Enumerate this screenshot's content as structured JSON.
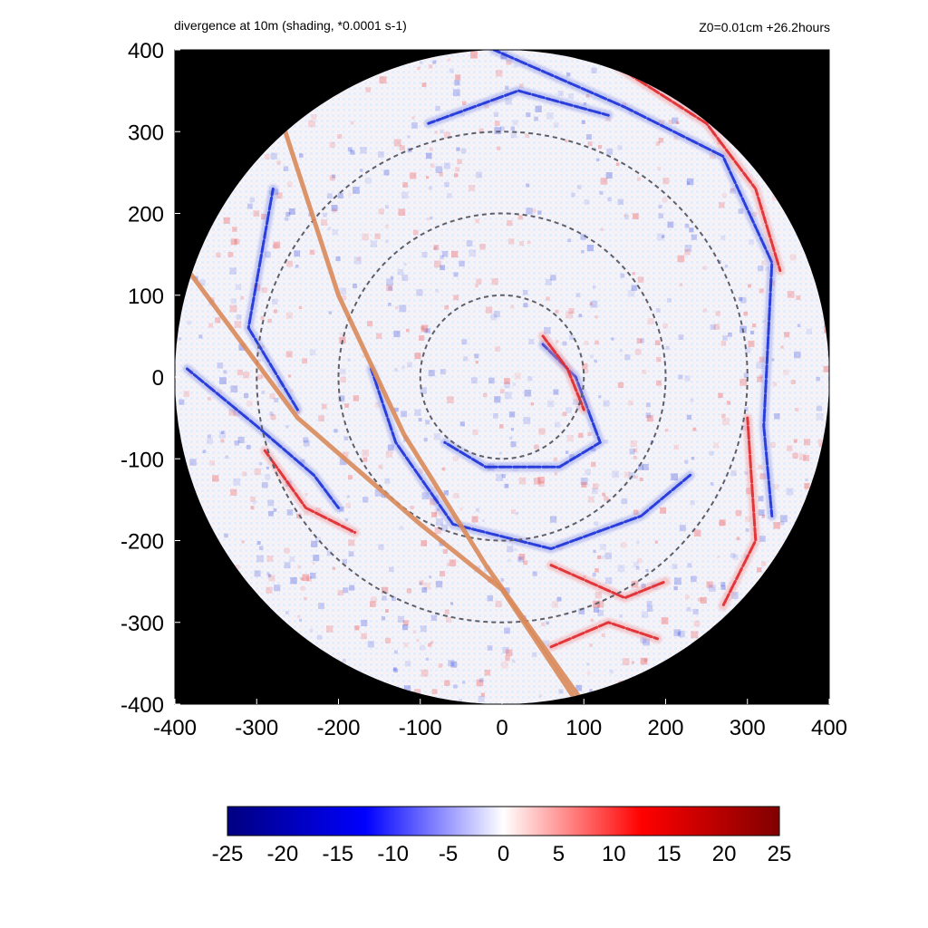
{
  "chart_data": {
    "type": "heatmap",
    "title": "divergence at 10m (shading, *0.0001 s-1)",
    "subtitle": "Z0=0.01cm  +26.2hours",
    "xlim": [
      -400,
      400
    ],
    "ylim": [
      -400,
      400
    ],
    "x_ticks": [
      -400,
      -300,
      -200,
      -100,
      0,
      100,
      200,
      300,
      400
    ],
    "y_ticks": [
      400,
      300,
      200,
      100,
      0,
      -100,
      -200,
      -300,
      -400
    ],
    "domain_radius": 400,
    "background_outside_domain": "#000000",
    "reference_circles_radius": [
      100,
      200,
      300
    ],
    "reference_circle_style": "dashed gray",
    "tracks": [
      {
        "color": "#d9895a",
        "points": [
          [
            -380,
            125
          ],
          [
            -250,
            -50
          ],
          [
            -100,
            -180
          ],
          [
            0,
            -260
          ],
          [
            90,
            -395
          ]
        ]
      },
      {
        "color": "#d9895a",
        "points": [
          [
            -265,
            300
          ],
          [
            -200,
            100
          ],
          [
            -120,
            -70
          ],
          [
            -20,
            -230
          ],
          [
            95,
            -392
          ]
        ]
      }
    ],
    "features": [
      {
        "kind": "convergence-band",
        "color": "blue",
        "points": [
          [
            -10,
            400
          ],
          [
            150,
            330
          ],
          [
            270,
            270
          ],
          [
            330,
            140
          ],
          [
            320,
            -60
          ],
          [
            330,
            -170
          ]
        ]
      },
      {
        "kind": "convergence-band",
        "color": "blue",
        "points": [
          [
            -385,
            10
          ],
          [
            -300,
            -60
          ],
          [
            -230,
            -120
          ],
          [
            -200,
            -160
          ]
        ]
      },
      {
        "kind": "convergence-band",
        "color": "blue",
        "points": [
          [
            -160,
            10
          ],
          [
            -130,
            -80
          ],
          [
            -60,
            -180
          ],
          [
            60,
            -210
          ],
          [
            170,
            -170
          ],
          [
            230,
            -120
          ]
        ]
      },
      {
        "kind": "convergence-band",
        "color": "blue",
        "points": [
          [
            50,
            40
          ],
          [
            90,
            0
          ],
          [
            120,
            -80
          ],
          [
            70,
            -110
          ],
          [
            -20,
            -110
          ],
          [
            -70,
            -80
          ]
        ]
      },
      {
        "kind": "convergence-band",
        "color": "blue",
        "points": [
          [
            -280,
            230
          ],
          [
            -310,
            60
          ],
          [
            -250,
            -40
          ]
        ]
      },
      {
        "kind": "convergence-band",
        "color": "blue",
        "points": [
          [
            -90,
            310
          ],
          [
            20,
            350
          ],
          [
            130,
            320
          ]
        ]
      },
      {
        "kind": "divergence-band",
        "color": "red",
        "points": [
          [
            140,
            380
          ],
          [
            250,
            310
          ],
          [
            310,
            230
          ],
          [
            340,
            130
          ]
        ]
      },
      {
        "kind": "divergence-band",
        "color": "red",
        "points": [
          [
            -290,
            -90
          ],
          [
            -240,
            -160
          ],
          [
            -180,
            -190
          ]
        ]
      },
      {
        "kind": "divergence-band",
        "color": "red",
        "points": [
          [
            300,
            -50
          ],
          [
            310,
            -200
          ],
          [
            270,
            -280
          ]
        ]
      },
      {
        "kind": "divergence-band",
        "color": "red",
        "points": [
          [
            60,
            -230
          ],
          [
            150,
            -270
          ],
          [
            200,
            -250
          ]
        ]
      },
      {
        "kind": "divergence-band",
        "color": "red",
        "points": [
          [
            50,
            50
          ],
          [
            80,
            10
          ],
          [
            100,
            -40
          ]
        ]
      },
      {
        "kind": "divergence-band",
        "color": "red",
        "points": [
          [
            60,
            -330
          ],
          [
            130,
            -300
          ],
          [
            190,
            -320
          ]
        ]
      }
    ],
    "colorbar": {
      "min": -25,
      "max": 25,
      "ticks": [
        "-25",
        "-20",
        "-15",
        "-10",
        "-5",
        "0",
        "5",
        "10",
        "15",
        "20",
        "25"
      ],
      "colors": [
        "#000080",
        "#0000ff",
        "#ffffff",
        "#ff0000",
        "#800000"
      ]
    }
  }
}
